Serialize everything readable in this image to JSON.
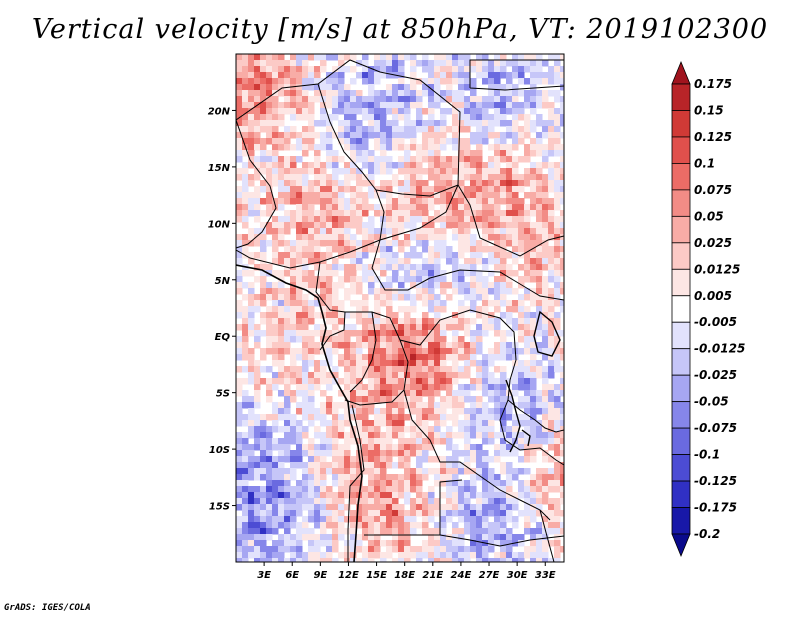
{
  "title": "Vertical velocity [m/s] at 850hPa, VT: 2019102300",
  "credit": "GrADS: IGES/COLA",
  "map": {
    "lon_range": [
      0,
      35
    ],
    "lat_range": [
      -20,
      25
    ],
    "lat_ticks": [
      {
        "value": 20,
        "label": "20N"
      },
      {
        "value": 15,
        "label": "15N"
      },
      {
        "value": 10,
        "label": "10N"
      },
      {
        "value": 5,
        "label": "5N"
      },
      {
        "value": 0,
        "label": "EQ"
      },
      {
        "value": -5,
        "label": "5S"
      },
      {
        "value": -10,
        "label": "10S"
      },
      {
        "value": -15,
        "label": "15S"
      }
    ],
    "lon_ticks": [
      {
        "value": 3,
        "label": "3E"
      },
      {
        "value": 6,
        "label": "6E"
      },
      {
        "value": 9,
        "label": "9E"
      },
      {
        "value": 12,
        "label": "12E"
      },
      {
        "value": 15,
        "label": "15E"
      },
      {
        "value": 18,
        "label": "18E"
      },
      {
        "value": 21,
        "label": "21E"
      },
      {
        "value": 24,
        "label": "24E"
      },
      {
        "value": 27,
        "label": "27E"
      },
      {
        "value": 30,
        "label": "30E"
      },
      {
        "value": 33,
        "label": "33E"
      }
    ],
    "features": [
      {
        "lon": 2,
        "lat": 22,
        "w": 1
      },
      {
        "lon": 20,
        "lat": 12,
        "w": 0.8
      },
      {
        "lon": 27,
        "lat": 13,
        "w": 0.8
      },
      {
        "lon": 8,
        "lat": 11,
        "w": 0.6
      },
      {
        "lon": 14,
        "lat": 20,
        "w": -0.7
      },
      {
        "lon": 28,
        "lat": 21,
        "w": -0.5
      },
      {
        "lon": 18,
        "lat": 5,
        "w": -0.6
      },
      {
        "lon": 24,
        "lat": 8,
        "w": -0.5
      },
      {
        "lon": 17,
        "lat": -2,
        "w": 0.9
      },
      {
        "lon": 20,
        "lat": 0,
        "w": 0.6
      },
      {
        "lon": 4,
        "lat": -2,
        "w": 0.35
      },
      {
        "lon": 3,
        "lat": -10,
        "w": -0.6
      },
      {
        "lon": 2,
        "lat": -17,
        "w": -0.7
      },
      {
        "lon": 14,
        "lat": -12,
        "w": 0.6
      },
      {
        "lon": 17,
        "lat": -16,
        "w": 0.4
      },
      {
        "lon": 27,
        "lat": -16,
        "w": -0.8
      },
      {
        "lon": 30,
        "lat": -6,
        "w": -0.6
      },
      {
        "lon": 33,
        "lat": -12,
        "w": 0.7
      },
      {
        "lon": 31,
        "lat": 8,
        "w": 0.5
      },
      {
        "lon": 10,
        "lat": 3,
        "w": 0.3
      }
    ]
  },
  "colorbar": {
    "levels": [
      "0.175",
      "0.15",
      "0.125",
      "0.1",
      "0.075",
      "0.05",
      "0.025",
      "0.0125",
      "0.005",
      "-0.005",
      "-0.0125",
      "-0.025",
      "-0.05",
      "-0.075",
      "-0.1",
      "-0.125",
      "-0.175",
      "-0.2"
    ],
    "colors": [
      "#a0141e",
      "#b82428",
      "#d03a36",
      "#e0504c",
      "#ec6c66",
      "#f28c86",
      "#f8aca6",
      "#fccac6",
      "#fde6e4",
      "#ffffff",
      "#e2e2fc",
      "#c6c6f8",
      "#a6a6f2",
      "#8686ea",
      "#6a6ae0",
      "#4c4cd4",
      "#3030c4",
      "#1818a8",
      "#0a0a8c"
    ]
  }
}
